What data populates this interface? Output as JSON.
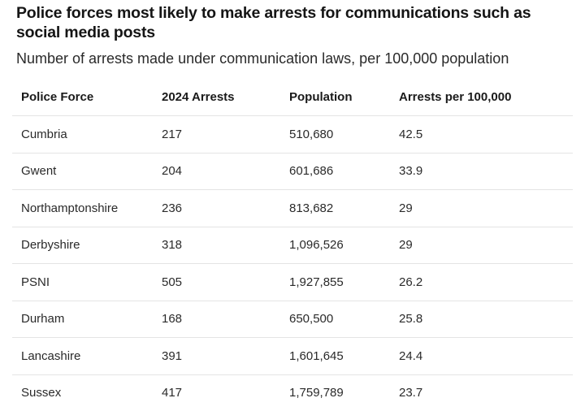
{
  "title": "Police forces most likely to make arrests for communications such as social media posts",
  "subtitle": "Number of arrests made under communication laws, per 100,000 population",
  "table": {
    "headers": [
      "Police Force",
      "2024 Arrests",
      "Population",
      "Arrests per 100,000"
    ],
    "rows": [
      [
        "Cumbria",
        "217",
        "510,680",
        "42.5"
      ],
      [
        "Gwent",
        "204",
        "601,686",
        "33.9"
      ],
      [
        "Northamptonshire",
        "236",
        "813,682",
        "29"
      ],
      [
        "Derbyshire",
        "318",
        "1,096,526",
        "29"
      ],
      [
        "PSNI",
        "505",
        "1,927,855",
        "26.2"
      ],
      [
        "Durham",
        "168",
        "650,500",
        "25.8"
      ],
      [
        "Lancashire",
        "391",
        "1,601,645",
        "24.4"
      ],
      [
        "Sussex",
        "417",
        "1,759,789",
        "23.7"
      ]
    ]
  }
}
